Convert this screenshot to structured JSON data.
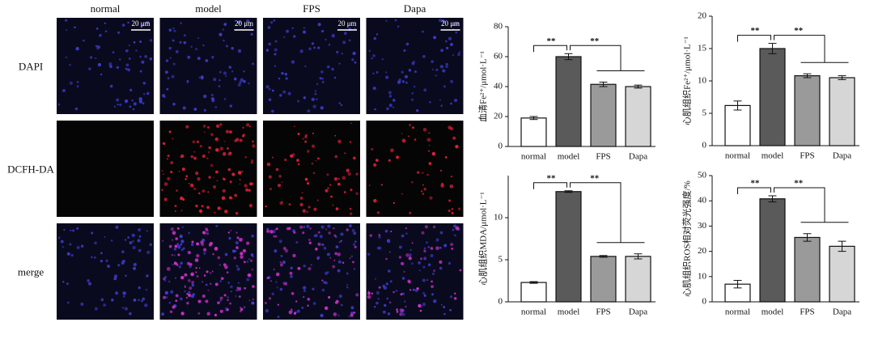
{
  "image_panel": {
    "columns": [
      "normal",
      "model",
      "FPS",
      "Dapa"
    ],
    "rows": [
      "DAPI",
      "DCFH-DA",
      "merge"
    ],
    "scale_bar": "20 μm"
  },
  "chart_data": [
    {
      "type": "bar",
      "y_label": "血清Fe²⁺/μmol·L⁻¹",
      "categories": [
        "normal",
        "model",
        "FPS",
        "Dapa"
      ],
      "values": [
        19,
        60,
        41.5,
        40
      ],
      "errors": [
        1,
        2,
        1.5,
        1
      ],
      "colors": [
        "#ffffff",
        "#5a5a5a",
        "#9a9a9a",
        "#d6d6d6"
      ],
      "ylim": [
        0,
        80
      ],
      "yticks": [
        0,
        20,
        40,
        60,
        80
      ],
      "annotations": [
        "**",
        "**"
      ]
    },
    {
      "type": "bar",
      "y_label": "心肌组织Fe²⁺/μmol·L⁻¹",
      "categories": [
        "normal",
        "model",
        "FPS",
        "Dapa"
      ],
      "values": [
        6.2,
        15,
        10.8,
        10.5
      ],
      "errors": [
        0.7,
        0.8,
        0.3,
        0.3
      ],
      "colors": [
        "#ffffff",
        "#5a5a5a",
        "#9a9a9a",
        "#d6d6d6"
      ],
      "ylim": [
        0,
        20
      ],
      "yticks": [
        0,
        5,
        10,
        15,
        20
      ],
      "annotations": [
        "**",
        "**"
      ]
    },
    {
      "type": "bar",
      "y_label": "心肌组织MDA/μmol·L⁻¹",
      "categories": [
        "normal",
        "model",
        "FPS",
        "Dapa"
      ],
      "values": [
        2.3,
        13.1,
        5.4,
        5.4
      ],
      "errors": [
        0.1,
        0.1,
        0.1,
        0.3
      ],
      "colors": [
        "#ffffff",
        "#5a5a5a",
        "#9a9a9a",
        "#d6d6d6"
      ],
      "ylim": [
        0,
        15
      ],
      "yticks": [
        0,
        5,
        10
      ],
      "annotations": [
        "**",
        "**"
      ]
    },
    {
      "type": "bar",
      "y_label": "心肌组织ROS相对荧光强度/%",
      "categories": [
        "normal",
        "model",
        "FPS",
        "Dapa"
      ],
      "values": [
        7,
        40.8,
        25.5,
        22
      ],
      "errors": [
        1.5,
        1.2,
        1.5,
        2
      ],
      "colors": [
        "#ffffff",
        "#5a5a5a",
        "#9a9a9a",
        "#d6d6d6"
      ],
      "ylim": [
        0,
        50
      ],
      "yticks": [
        0,
        10,
        20,
        30,
        40,
        50
      ],
      "annotations": [
        "**",
        "**"
      ]
    }
  ]
}
